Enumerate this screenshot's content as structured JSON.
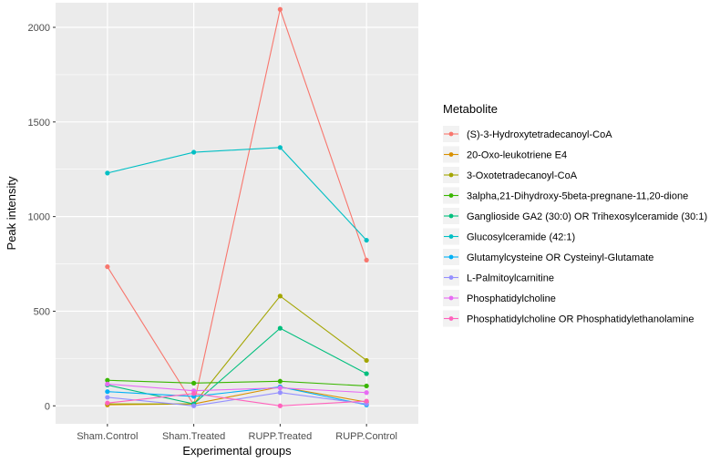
{
  "chart_data": {
    "type": "line",
    "title": "",
    "xlabel": "Experimental groups",
    "ylabel": "Peak intensity",
    "categories": [
      "Sham.Control",
      "Sham.Treated",
      "RUPP.Treated",
      "RUPP.Control"
    ],
    "ylim": [
      -95,
      2130
    ],
    "yticks": [
      0,
      500,
      1000,
      1500,
      2000
    ],
    "grid": true,
    "legend_title": "Metabolite",
    "legend_position": "right",
    "series": [
      {
        "name": "(S)-3-Hydroxytetradecanoyl-CoA",
        "color": "#F8766D",
        "values": [
          735,
          5,
          2095,
          770
        ]
      },
      {
        "name": "20-Oxo-leukotriene E4",
        "color": "#D89000",
        "values": [
          5,
          10,
          100,
          20
        ]
      },
      {
        "name": "3-Oxotetradecanoyl-CoA",
        "color": "#A3A500",
        "values": [
          10,
          10,
          580,
          240
        ]
      },
      {
        "name": "3alpha,21-Dihydroxy-5beta-pregnane-11,20-dione",
        "color": "#39B600",
        "values": [
          135,
          120,
          130,
          105
        ]
      },
      {
        "name": "Ganglioside GA2 (30:0) OR Trihexosylceramide (30:1)",
        "color": "#00BF7D",
        "values": [
          110,
          10,
          410,
          170
        ]
      },
      {
        "name": "Glucosylceramide (42:1)",
        "color": "#00BFC4",
        "values": [
          1230,
          1340,
          1365,
          875
        ]
      },
      {
        "name": "Glutamylcysteine OR Cysteinyl-Glutamate",
        "color": "#00B0F6",
        "values": [
          75,
          50,
          100,
          5
        ]
      },
      {
        "name": "L-Palmitoylcarnitine",
        "color": "#9590FF",
        "values": [
          45,
          0,
          70,
          10
        ]
      },
      {
        "name": "Phosphatidylcholine",
        "color": "#E76BF3",
        "values": [
          115,
          80,
          95,
          70
        ]
      },
      {
        "name": "Phosphatidylcholine OR Phosphatidylethanolamine",
        "color": "#FF62BC",
        "values": [
          15,
          65,
          0,
          25
        ]
      }
    ]
  }
}
